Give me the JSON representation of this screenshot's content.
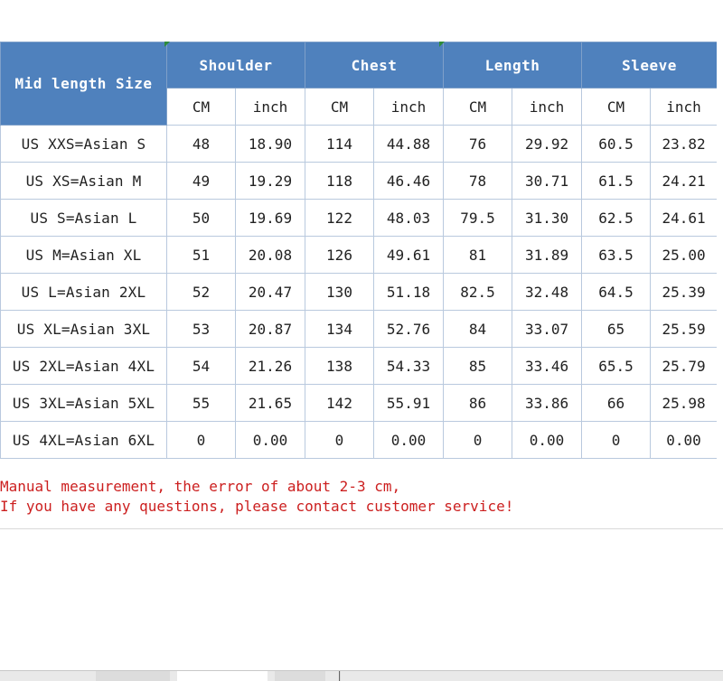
{
  "table": {
    "corner_label": "Mid length Size",
    "groups": [
      "Shoulder",
      "Chest",
      "Length",
      "Sleeve"
    ],
    "units": [
      "CM",
      "inch",
      "CM",
      "inch",
      "CM",
      "inch",
      "CM",
      "inch"
    ],
    "rows": [
      {
        "size": "US XXS=Asian S",
        "values": [
          "48",
          "18.90",
          "114",
          "44.88",
          "76",
          "29.92",
          "60.5",
          "23.82"
        ]
      },
      {
        "size": "US XS=Asian M",
        "values": [
          "49",
          "19.29",
          "118",
          "46.46",
          "78",
          "30.71",
          "61.5",
          "24.21"
        ]
      },
      {
        "size": "US S=Asian L",
        "values": [
          "50",
          "19.69",
          "122",
          "48.03",
          "79.5",
          "31.30",
          "62.5",
          "24.61"
        ]
      },
      {
        "size": "US M=Asian XL",
        "values": [
          "51",
          "20.08",
          "126",
          "49.61",
          "81",
          "31.89",
          "63.5",
          "25.00"
        ]
      },
      {
        "size": "US L=Asian 2XL",
        "values": [
          "52",
          "20.47",
          "130",
          "51.18",
          "82.5",
          "32.48",
          "64.5",
          "25.39"
        ]
      },
      {
        "size": "US XL=Asian 3XL",
        "values": [
          "53",
          "20.87",
          "134",
          "52.76",
          "84",
          "33.07",
          "65",
          "25.59"
        ]
      },
      {
        "size": "US 2XL=Asian 4XL",
        "values": [
          "54",
          "21.26",
          "138",
          "54.33",
          "85",
          "33.46",
          "65.5",
          "25.79"
        ]
      },
      {
        "size": "US 3XL=Asian 5XL",
        "values": [
          "55",
          "21.65",
          "142",
          "55.91",
          "86",
          "33.86",
          "66",
          "25.98"
        ]
      },
      {
        "size": "US 4XL=Asian 6XL",
        "values": [
          "0",
          "0.00",
          "0",
          "0.00",
          "0",
          "0.00",
          "0",
          "0.00"
        ]
      }
    ]
  },
  "notes": {
    "line1": "Manual measurement, the error of about 2-3 cm,",
    "line2": "If you have any questions, please contact customer service!"
  },
  "colors": {
    "header_bg": "#4f81bd",
    "note_text": "#cc1f1f",
    "grid": "#b9c9de"
  }
}
